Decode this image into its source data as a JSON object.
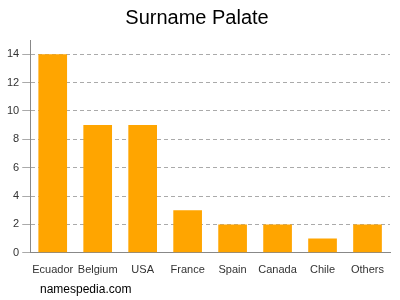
{
  "chart_data": {
    "type": "bar",
    "title": "Surname Palate",
    "categories": [
      "Ecuador",
      "Belgium",
      "USA",
      "France",
      "Spain",
      "Canada",
      "Chile",
      "Others"
    ],
    "values": [
      14,
      9,
      9,
      3,
      2,
      2,
      1,
      2
    ],
    "color": "#ffa500",
    "ylim": [
      0,
      15
    ],
    "yticks": [
      0,
      2,
      4,
      6,
      8,
      10,
      12,
      14
    ],
    "grid": true,
    "annotations": [
      "namespedia.com"
    ]
  }
}
